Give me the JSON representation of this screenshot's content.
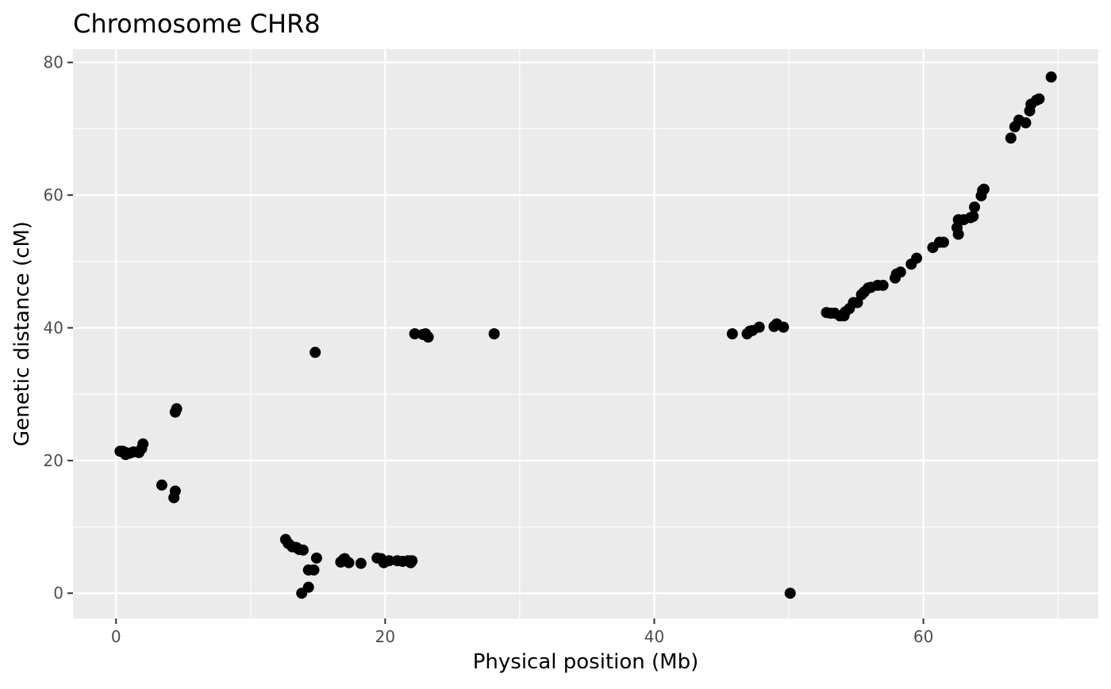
{
  "chart_data": {
    "type": "scatter",
    "title": "Chromosome CHR8",
    "xlabel": "Physical position (Mb)",
    "ylabel": "Genetic distance (cM)",
    "xlim": [
      -3.2,
      73
    ],
    "ylim": [
      -3.8,
      82
    ],
    "x_ticks": [
      0,
      20,
      40,
      60
    ],
    "y_ticks": [
      0,
      20,
      40,
      60,
      80
    ],
    "x_minor": [
      10,
      30,
      50,
      70
    ],
    "y_minor": [
      10,
      30,
      50,
      70
    ],
    "grid": true,
    "colors": {
      "panel": "#ebebeb",
      "grid": "#ffffff",
      "point": "#000000",
      "tick_label": "#4d4d4d",
      "text": "#000000"
    },
    "points": [
      [
        0.3,
        21.4
      ],
      [
        0.5,
        21.4
      ],
      [
        0.7,
        21.2
      ],
      [
        0.7,
        20.9
      ],
      [
        1.0,
        21.1
      ],
      [
        1.3,
        21.3
      ],
      [
        1.7,
        21.2
      ],
      [
        1.9,
        21.8
      ],
      [
        2.0,
        22.5
      ],
      [
        3.4,
        16.3
      ],
      [
        4.3,
        14.4
      ],
      [
        4.4,
        15.4
      ],
      [
        4.4,
        27.3
      ],
      [
        4.5,
        27.8
      ],
      [
        12.6,
        8.1
      ],
      [
        12.8,
        7.5
      ],
      [
        13.1,
        7.0
      ],
      [
        13.4,
        6.9
      ],
      [
        13.6,
        6.6
      ],
      [
        13.9,
        6.5
      ],
      [
        13.8,
        0.0
      ],
      [
        14.3,
        0.9
      ],
      [
        14.3,
        3.5
      ],
      [
        14.7,
        3.5
      ],
      [
        14.9,
        5.3
      ],
      [
        14.8,
        36.3
      ],
      [
        16.7,
        4.7
      ],
      [
        16.9,
        5.1
      ],
      [
        17.0,
        5.2
      ],
      [
        17.3,
        4.6
      ],
      [
        18.2,
        4.5
      ],
      [
        19.4,
        5.3
      ],
      [
        19.7,
        5.2
      ],
      [
        19.9,
        4.6
      ],
      [
        20.3,
        4.9
      ],
      [
        20.9,
        4.9
      ],
      [
        21.3,
        4.8
      ],
      [
        21.7,
        4.9
      ],
      [
        21.9,
        4.6
      ],
      [
        22.0,
        4.9
      ],
      [
        22.2,
        39.1
      ],
      [
        22.8,
        39.0
      ],
      [
        23.0,
        39.1
      ],
      [
        23.2,
        38.6
      ],
      [
        28.1,
        39.1
      ],
      [
        45.8,
        39.1
      ],
      [
        46.9,
        39.1
      ],
      [
        47.1,
        39.5
      ],
      [
        47.3,
        39.6
      ],
      [
        47.8,
        40.1
      ],
      [
        48.9,
        40.2
      ],
      [
        49.1,
        40.6
      ],
      [
        49.6,
        40.1
      ],
      [
        50.1,
        0.0
      ],
      [
        52.8,
        42.3
      ],
      [
        53.1,
        42.2
      ],
      [
        53.4,
        42.2
      ],
      [
        53.8,
        41.8
      ],
      [
        54.1,
        41.8
      ],
      [
        54.2,
        42.4
      ],
      [
        54.5,
        42.9
      ],
      [
        54.8,
        43.8
      ],
      [
        55.1,
        43.8
      ],
      [
        55.4,
        45.0
      ],
      [
        55.6,
        45.4
      ],
      [
        55.9,
        46.0
      ],
      [
        56.1,
        46.1
      ],
      [
        56.6,
        46.4
      ],
      [
        57.0,
        46.4
      ],
      [
        57.9,
        47.5
      ],
      [
        58.0,
        48.1
      ],
      [
        58.3,
        48.4
      ],
      [
        59.1,
        49.6
      ],
      [
        59.5,
        50.5
      ],
      [
        60.7,
        52.1
      ],
      [
        61.2,
        52.9
      ],
      [
        61.5,
        52.9
      ],
      [
        62.5,
        55.1
      ],
      [
        62.6,
        54.1
      ],
      [
        62.6,
        56.3
      ],
      [
        63.0,
        56.3
      ],
      [
        63.5,
        56.6
      ],
      [
        63.7,
        56.8
      ],
      [
        63.8,
        58.2
      ],
      [
        64.3,
        59.9
      ],
      [
        64.4,
        60.7
      ],
      [
        64.5,
        60.9
      ],
      [
        66.5,
        68.6
      ],
      [
        66.8,
        70.3
      ],
      [
        67.1,
        71.3
      ],
      [
        67.6,
        70.9
      ],
      [
        67.9,
        72.7
      ],
      [
        68.0,
        73.7
      ],
      [
        68.4,
        74.3
      ],
      [
        68.6,
        74.5
      ],
      [
        69.5,
        77.8
      ]
    ]
  }
}
